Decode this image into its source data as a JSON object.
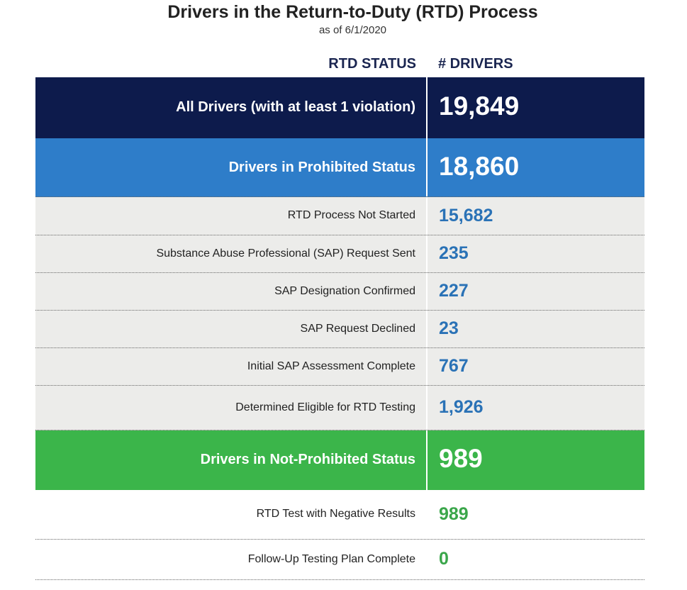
{
  "title": "Drivers in the Return-to-Duty (RTD) Process",
  "subtitle": "as of 6/1/2020",
  "columns": {
    "status": "RTD STATUS",
    "drivers": "# DRIVERS"
  },
  "colors": {
    "navy": "#0d1b4c",
    "blue": "#2e7dc9",
    "green": "#3bb54a",
    "gray_band": "#ececea",
    "blue_text": "#2a72b6",
    "green_text": "#3aa64a"
  },
  "chart_data": {
    "type": "table",
    "title": "Drivers in the Return-to-Duty (RTD) Process",
    "subtitle": "as of 6/1/2020",
    "columns": [
      "RTD STATUS",
      "# DRIVERS"
    ],
    "rows": [
      {
        "label": "All Drivers (with at least 1 violation)",
        "value": 19849,
        "display": "19,849",
        "group": "total"
      },
      {
        "label": "Drivers in Prohibited Status",
        "value": 18860,
        "display": "18,860",
        "group": "prohibited-header"
      },
      {
        "label": "RTD Process Not Started",
        "value": 15682,
        "display": "15,682",
        "group": "prohibited"
      },
      {
        "label": "Substance Abuse Professional (SAP) Request Sent",
        "value": 235,
        "display": "235",
        "group": "prohibited"
      },
      {
        "label": "SAP Designation Confirmed",
        "value": 227,
        "display": "227",
        "group": "prohibited"
      },
      {
        "label": "SAP Request Declined",
        "value": 23,
        "display": "23",
        "group": "prohibited"
      },
      {
        "label": "Initial SAP Assessment Complete",
        "value": 767,
        "display": "767",
        "group": "prohibited"
      },
      {
        "label": "Determined Eligible for RTD Testing",
        "value": 1926,
        "display": "1,926",
        "group": "prohibited"
      },
      {
        "label": "Drivers in Not-Prohibited Status",
        "value": 989,
        "display": "989",
        "group": "not-prohibited-header"
      },
      {
        "label": "RTD Test with Negative Results",
        "value": 989,
        "display": "989",
        "group": "not-prohibited"
      },
      {
        "label": "Follow-Up Testing Plan Complete",
        "value": 0,
        "display": "0",
        "group": "not-prohibited"
      }
    ]
  }
}
